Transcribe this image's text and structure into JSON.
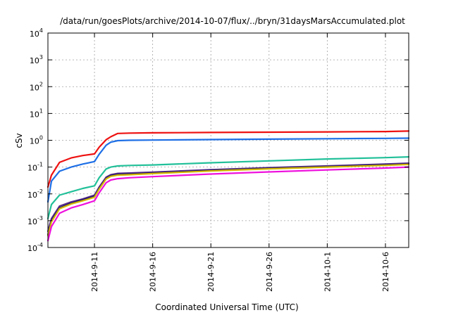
{
  "chart_data": {
    "type": "line",
    "title": "/data/run/goesPlots/archive/2014-10-07/flux/../bryn/31daysMarsAccumulated.plot",
    "xlabel": "Coordinated Universal Time (UTC)",
    "ylabel": "cSv",
    "x_axis": {
      "unit": "days (September–October 2014)",
      "range": [
        "2014-9-7",
        "2014-10-8"
      ],
      "ticks": [
        {
          "date": "2014-9-11",
          "label": "2014-9-11"
        },
        {
          "date": "2014-9-16",
          "label": "2014-9-16"
        },
        {
          "date": "2014-9-21",
          "label": "2014-9-21"
        },
        {
          "date": "2014-9-26",
          "label": "2014-9-26"
        },
        {
          "date": "2014-10-1",
          "label": "2014-10-1"
        },
        {
          "date": "2014-10-6",
          "label": "2014-10-6"
        }
      ]
    },
    "y_axis": {
      "scale": "log",
      "ylim": [
        0.0001,
        10000
      ],
      "ticks": [
        {
          "value": 0.0001,
          "base": "10",
          "exp": "-4"
        },
        {
          "value": 0.001,
          "base": "10",
          "exp": "-3"
        },
        {
          "value": 0.01,
          "base": "10",
          "exp": "-2"
        },
        {
          "value": 0.1,
          "base": "10",
          "exp": "-1"
        },
        {
          "value": 1,
          "base": "10",
          "exp": "0"
        },
        {
          "value": 10,
          "base": "10",
          "exp": "1"
        },
        {
          "value": 100,
          "base": "10",
          "exp": "2"
        },
        {
          "value": 1000,
          "base": "10",
          "exp": "3"
        },
        {
          "value": 10000,
          "base": "10",
          "exp": "4"
        }
      ]
    },
    "grid": true,
    "legend": "none",
    "x_dates": [
      "2014-9-7",
      "2014-9-7",
      "2014-9-8",
      "2014-9-9",
      "2014-9-10",
      "2014-9-11",
      "2014-9-11",
      "2014-9-12",
      "2014-9-12",
      "2014-9-13",
      "2014-9-14",
      "2014-9-16",
      "2014-9-21",
      "2014-9-26",
      "2014-10-1",
      "2014-10-6",
      "2014-10-8"
    ],
    "x_day_fraction": [
      0.0,
      0.3,
      0.0,
      0.0,
      0.0,
      0.0,
      0.4,
      0.0,
      0.4,
      0.0,
      0.0,
      0.0,
      0.0,
      0.0,
      0.0,
      0.0,
      0.0
    ],
    "series": [
      {
        "color": "#ee1111",
        "values": [
          0.018,
          0.05,
          0.15,
          0.22,
          0.27,
          0.31,
          0.55,
          1.05,
          1.35,
          1.8,
          1.85,
          1.9,
          1.95,
          2.0,
          2.05,
          2.12,
          2.2
        ]
      },
      {
        "color": "#1e6fe6",
        "values": [
          0.005,
          0.03,
          0.07,
          0.1,
          0.13,
          0.16,
          0.3,
          0.65,
          0.85,
          0.97,
          1.0,
          1.02,
          1.06,
          1.1,
          1.14,
          1.18,
          1.2
        ]
      },
      {
        "color": "#22c099",
        "values": [
          0.0012,
          0.004,
          0.009,
          0.012,
          0.016,
          0.02,
          0.04,
          0.085,
          0.1,
          0.11,
          0.115,
          0.12,
          0.145,
          0.17,
          0.2,
          0.225,
          0.24
        ]
      },
      {
        "color": "#5a2a8a",
        "values": [
          0.0004,
          0.0012,
          0.0035,
          0.005,
          0.0065,
          0.009,
          0.018,
          0.042,
          0.052,
          0.058,
          0.06,
          0.065,
          0.08,
          0.095,
          0.11,
          0.13,
          0.14
        ]
      },
      {
        "color": "#1a1a6a",
        "values": [
          0.0003,
          0.001,
          0.003,
          0.0045,
          0.006,
          0.008,
          0.016,
          0.038,
          0.048,
          0.053,
          0.055,
          0.06,
          0.075,
          0.09,
          0.105,
          0.122,
          0.13
        ]
      },
      {
        "color": "#d4b800",
        "values": [
          0.00028,
          0.0009,
          0.0028,
          0.0042,
          0.0055,
          0.0075,
          0.015,
          0.036,
          0.045,
          0.05,
          0.052,
          0.057,
          0.072,
          0.086,
          0.1,
          0.116,
          0.125
        ]
      },
      {
        "color": "#ee11dd",
        "values": [
          0.00018,
          0.0006,
          0.0019,
          0.003,
          0.004,
          0.0055,
          0.011,
          0.026,
          0.033,
          0.037,
          0.04,
          0.044,
          0.055,
          0.066,
          0.078,
          0.092,
          0.1
        ]
      }
    ]
  }
}
